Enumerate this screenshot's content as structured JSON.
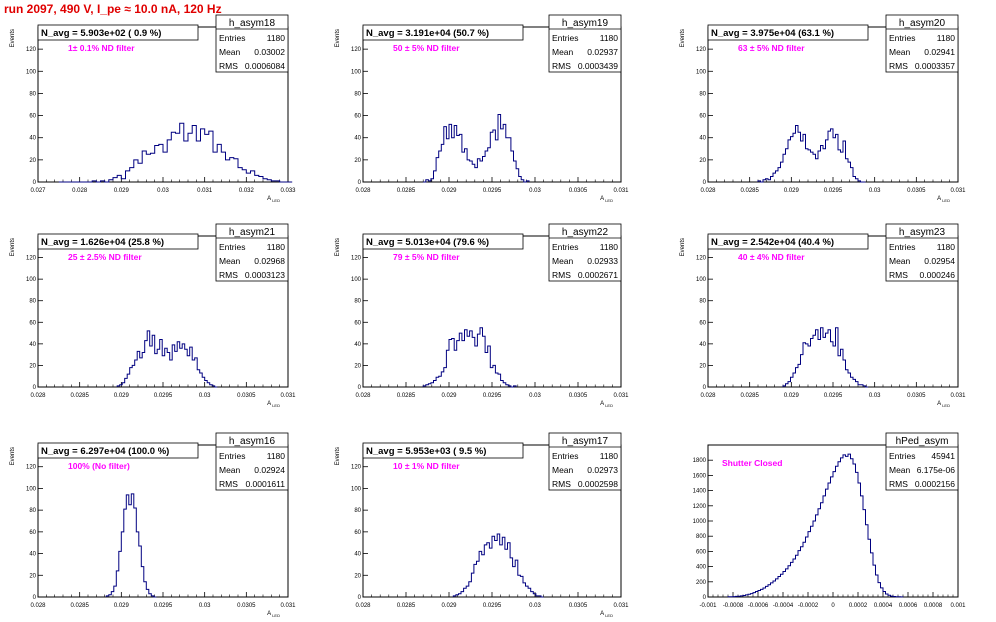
{
  "canvas": {
    "title": "run 2097,   490 V, I_pe ≈ 10.0 nA, 120 Hz",
    "title_color": "#e00000",
    "hist_color": "#000080",
    "label_color": "#ff00ff"
  },
  "chart_data": [
    {
      "type": "histogram",
      "name": "h_asym18",
      "header": "N_avg = 5.903e+02 ( 0.9 %)",
      "label": "1± 0.1% ND filter",
      "stats": {
        "entries": "1180",
        "mean": "0.03002",
        "rms": "0.0006084"
      },
      "xlabel": "A_LED",
      "ylabel": "Events",
      "xlim": [
        0.027,
        0.033
      ],
      "ylim": [
        0,
        140
      ],
      "xticks": [
        0.027,
        0.028,
        0.029,
        0.03,
        0.031,
        0.032,
        0.033
      ],
      "xticklabels": [
        "0.027",
        "0.028",
        "0.029",
        "0.03",
        "0.031",
        "0.032",
        "0.033"
      ],
      "yticks": [
        0,
        20,
        40,
        60,
        80,
        100,
        120
      ],
      "yticklabels": [
        "0",
        "20",
        "40",
        "60",
        "80",
        "100",
        "120"
      ],
      "bins": {
        "x0": 0.0275,
        "width": 0.0001,
        "values": [
          0,
          0,
          0,
          0,
          0,
          0,
          0,
          0,
          1,
          0,
          1,
          0,
          2,
          4,
          6,
          3,
          10,
          13,
          20,
          17,
          28,
          25,
          26,
          33,
          34,
          27,
          38,
          45,
          44,
          53,
          37,
          44,
          51,
          37,
          48,
          43,
          46,
          27,
          34,
          27,
          20,
          22,
          21,
          13,
          11,
          8,
          10,
          6,
          5,
          3,
          2,
          1,
          1,
          0,
          0,
          0
        ]
      }
    },
    {
      "type": "histogram",
      "name": "h_asym19",
      "header": "N_avg = 3.191e+04 (50.7 %)",
      "label": "50 ± 5% ND filter",
      "stats": {
        "entries": "1180",
        "mean": "0.02937",
        "rms": "0.0003439"
      },
      "xlabel": "A_LED",
      "ylabel": "Events",
      "xlim": [
        0.028,
        0.031
      ],
      "ylim": [
        0,
        140
      ],
      "xticks": [
        0.028,
        0.0285,
        0.029,
        0.0295,
        0.03,
        0.0305,
        0.031
      ],
      "xticklabels": [
        "0.028",
        "0.0285",
        "0.029",
        "0.0295",
        "0.03",
        "0.0305",
        "0.031"
      ],
      "yticks": [
        0,
        20,
        40,
        60,
        80,
        100,
        120
      ],
      "yticklabels": [
        "0",
        "20",
        "40",
        "60",
        "80",
        "100",
        "120"
      ],
      "bins": {
        "x0": 0.0287,
        "width": 3e-05,
        "values": [
          0,
          2,
          1,
          3,
          10,
          22,
          28,
          34,
          50,
          39,
          52,
          40,
          51,
          42,
          43,
          27,
          30,
          20,
          19,
          16,
          13,
          21,
          19,
          23,
          28,
          31,
          45,
          47,
          38,
          61,
          48,
          52,
          40,
          40,
          28,
          19,
          12,
          5,
          2,
          0,
          1
        ]
      }
    },
    {
      "type": "histogram",
      "name": "h_asym20",
      "header": "N_avg = 3.975e+04 (63.1 %)",
      "label": "63 ± 5% ND filter",
      "stats": {
        "entries": "1180",
        "mean": "0.02941",
        "rms": "0.0003357"
      },
      "xlabel": "A_LED",
      "ylabel": "Events",
      "xlim": [
        0.028,
        0.031
      ],
      "ylim": [
        0,
        140
      ],
      "xticks": [
        0.028,
        0.0285,
        0.029,
        0.0295,
        0.03,
        0.0305,
        0.031
      ],
      "xticklabels": [
        "0.028",
        "0.0285",
        "0.029",
        "0.0295",
        "0.03",
        "0.0305",
        "0.031"
      ],
      "yticks": [
        0,
        20,
        40,
        60,
        80,
        100,
        120
      ],
      "yticklabels": [
        "0",
        "20",
        "40",
        "60",
        "80",
        "100",
        "120"
      ],
      "bins": {
        "x0": 0.0286,
        "width": 3e-05,
        "values": [
          1,
          0,
          2,
          3,
          2,
          5,
          8,
          10,
          13,
          18,
          25,
          30,
          38,
          41,
          44,
          51,
          45,
          37,
          43,
          30,
          29,
          27,
          25,
          21,
          28,
          33,
          30,
          38,
          46,
          48,
          40,
          43,
          29,
          27,
          37,
          21,
          18,
          13,
          5,
          3,
          1,
          0,
          0
        ]
      }
    },
    {
      "type": "histogram",
      "name": "h_asym21",
      "header": "N_avg = 1.626e+04 (25.8 %)",
      "label": "25 ± 2.5% ND filter",
      "stats": {
        "entries": "1180",
        "mean": "0.02968",
        "rms": "0.0003123"
      },
      "xlabel": "A_LED",
      "ylabel": "Events",
      "xlim": [
        0.028,
        0.031
      ],
      "ylim": [
        0,
        140
      ],
      "xticks": [
        0.028,
        0.0285,
        0.029,
        0.0295,
        0.03,
        0.0305,
        0.031
      ],
      "xticklabels": [
        "0.028",
        "0.0285",
        "0.029",
        "0.0295",
        "0.03",
        "0.0305",
        "0.031"
      ],
      "yticks": [
        0,
        20,
        40,
        60,
        80,
        100,
        120
      ],
      "yticklabels": [
        "0",
        "20",
        "40",
        "60",
        "80",
        "100",
        "120"
      ],
      "bins": {
        "x0": 0.02895,
        "width": 3e-05,
        "values": [
          1,
          2,
          4,
          8,
          12,
          18,
          20,
          25,
          33,
          27,
          32,
          43,
          52,
          38,
          48,
          31,
          35,
          44,
          29,
          36,
          32,
          25,
          39,
          33,
          42,
          36,
          40,
          35,
          29,
          37,
          25,
          27,
          16,
          13,
          9,
          6,
          4,
          2,
          1,
          0
        ]
      }
    },
    {
      "type": "histogram",
      "name": "h_asym22",
      "header": "N_avg = 5.013e+04 (79.6 %)",
      "label": "79 ± 5% ND filter",
      "stats": {
        "entries": "1180",
        "mean": "0.02933",
        "rms": "0.0002671"
      },
      "xlabel": "A_LED",
      "ylabel": "Events",
      "xlim": [
        0.028,
        0.031
      ],
      "ylim": [
        0,
        140
      ],
      "xticks": [
        0.028,
        0.0285,
        0.029,
        0.0295,
        0.03,
        0.0305,
        0.031
      ],
      "xticklabels": [
        "0.028",
        "0.0285",
        "0.029",
        "0.0295",
        "0.03",
        "0.0305",
        "0.031"
      ],
      "yticks": [
        0,
        20,
        40,
        60,
        80,
        100,
        120
      ],
      "yticklabels": [
        "0",
        "20",
        "40",
        "60",
        "80",
        "100",
        "120"
      ],
      "bins": {
        "x0": 0.0287,
        "width": 3e-05,
        "values": [
          1,
          2,
          3,
          4,
          6,
          9,
          10,
          14,
          18,
          34,
          44,
          45,
          34,
          43,
          50,
          43,
          53,
          47,
          52,
          46,
          38,
          49,
          55,
          47,
          32,
          38,
          18,
          20,
          13,
          12,
          6,
          4,
          2,
          1,
          0,
          1
        ]
      }
    },
    {
      "type": "histogram",
      "name": "h_asym23",
      "header": "N_avg = 2.542e+04 (40.4 %)",
      "label": "40 ± 4% ND filter",
      "stats": {
        "entries": "1180",
        "mean": "0.02954",
        "rms": "0.000246"
      },
      "xlabel": "A_LED",
      "ylabel": "Events",
      "xlim": [
        0.028,
        0.031
      ],
      "ylim": [
        0,
        140
      ],
      "xticks": [
        0.028,
        0.0285,
        0.029,
        0.0295,
        0.03,
        0.0305,
        0.031
      ],
      "xticklabels": [
        "0.028",
        "0.0285",
        "0.029",
        "0.0295",
        "0.03",
        "0.0305",
        "0.031"
      ],
      "yticks": [
        0,
        20,
        40,
        60,
        80,
        100,
        120
      ],
      "yticklabels": [
        "0",
        "20",
        "40",
        "60",
        "80",
        "100",
        "120"
      ],
      "bins": {
        "x0": 0.0289,
        "width": 3e-05,
        "values": [
          1,
          3,
          5,
          9,
          13,
          18,
          21,
          30,
          41,
          40,
          38,
          45,
          48,
          53,
          44,
          55,
          46,
          50,
          53,
          42,
          38,
          55,
          29,
          35,
          25,
          16,
          13,
          9,
          7,
          5,
          2,
          2,
          1,
          0
        ]
      }
    },
    {
      "type": "histogram",
      "name": "h_asym16",
      "header": "N_avg = 6.297e+04 (100.0 %)",
      "label": "100% (No filter)",
      "stats": {
        "entries": "1180",
        "mean": "0.02924",
        "rms": "0.0001611"
      },
      "xlabel": "A_LED",
      "ylabel": "Events",
      "xlim": [
        0.028,
        0.031
      ],
      "ylim": [
        0,
        140
      ],
      "xticks": [
        0.028,
        0.0285,
        0.029,
        0.0295,
        0.03,
        0.0305,
        0.031
      ],
      "xticklabels": [
        "0.028",
        "0.0285",
        "0.029",
        "0.0295",
        "0.03",
        "0.0305",
        "0.031"
      ],
      "yticks": [
        0,
        20,
        40,
        60,
        80,
        100,
        120
      ],
      "yticklabels": [
        "0",
        "20",
        "40",
        "60",
        "80",
        "100",
        "120"
      ],
      "bins": {
        "x0": 0.02882,
        "width": 3e-05,
        "values": [
          1,
          2,
          5,
          10,
          24,
          42,
          60,
          81,
          94,
          85,
          95,
          82,
          60,
          47,
          28,
          14,
          7,
          3,
          1,
          0
        ]
      }
    },
    {
      "type": "histogram",
      "name": "h_asym17",
      "header": "N_avg = 5.953e+03 ( 9.5 %)",
      "label": "10 ± 1% ND filter",
      "stats": {
        "entries": "1180",
        "mean": "0.02973",
        "rms": "0.0002598"
      },
      "xlabel": "A_LED",
      "ylabel": "Events",
      "xlim": [
        0.028,
        0.031
      ],
      "ylim": [
        0,
        140
      ],
      "xticks": [
        0.028,
        0.0285,
        0.029,
        0.0295,
        0.03,
        0.0305,
        0.031
      ],
      "xticklabels": [
        "0.028",
        "0.0285",
        "0.029",
        "0.0295",
        "0.03",
        "0.0305",
        "0.031"
      ],
      "yticks": [
        0,
        20,
        40,
        60,
        80,
        100,
        120
      ],
      "yticklabels": [
        "0",
        "20",
        "40",
        "60",
        "80",
        "100",
        "120"
      ],
      "bins": {
        "x0": 0.02905,
        "width": 3e-05,
        "values": [
          1,
          2,
          3,
          5,
          8,
          10,
          14,
          22,
          30,
          33,
          42,
          39,
          48,
          50,
          45,
          56,
          52,
          58,
          48,
          55,
          44,
          50,
          36,
          28,
          34,
          20,
          19,
          13,
          10,
          8,
          5,
          3,
          1,
          1,
          0
        ]
      }
    },
    {
      "type": "histogram",
      "name": "hPed_asym",
      "header": "",
      "label": "Shutter Closed",
      "stats": {
        "entries": "45941",
        "mean": "6.175e-06",
        "rms": "0.0002156"
      },
      "xlabel": "",
      "ylabel": "",
      "xlim": [
        -0.001,
        0.001
      ],
      "ylim": [
        0,
        2000
      ],
      "xticks": [
        -0.001,
        -0.0008,
        -0.0006,
        -0.0004,
        -0.0002,
        0,
        0.0002,
        0.0004,
        0.0006,
        0.0008,
        0.001
      ],
      "xticklabels": [
        "-0.001",
        "-0.0008",
        "-0.0006",
        "-0.0004",
        "-0.0002",
        "0",
        "0.0002",
        "0.0004",
        "0.0006",
        "0.0008",
        "0.001"
      ],
      "yticks": [
        0,
        200,
        400,
        600,
        800,
        1000,
        1200,
        1400,
        1600,
        1800
      ],
      "yticklabels": [
        "0",
        "200",
        "400",
        "600",
        "800",
        "1000",
        "1200",
        "1400",
        "1600",
        "1800"
      ],
      "bins": {
        "x0": -0.00084,
        "width": 2e-05,
        "values": [
          2,
          3,
          5,
          8,
          10,
          14,
          20,
          28,
          35,
          45,
          58,
          72,
          85,
          100,
          118,
          140,
          162,
          185,
          210,
          238,
          270,
          300,
          335,
          370,
          410,
          455,
          500,
          550,
          610,
          660,
          720,
          790,
          860,
          930,
          1000,
          1080,
          1160,
          1240,
          1330,
          1420,
          1500,
          1580,
          1650,
          1720,
          1780,
          1830,
          1870,
          1850,
          1880,
          1820,
          1750,
          1640,
          1500,
          1330,
          1150,
          950,
          760,
          580,
          420,
          290,
          190,
          120,
          72,
          40,
          22,
          12,
          6,
          3,
          2,
          1
        ]
      }
    }
  ]
}
